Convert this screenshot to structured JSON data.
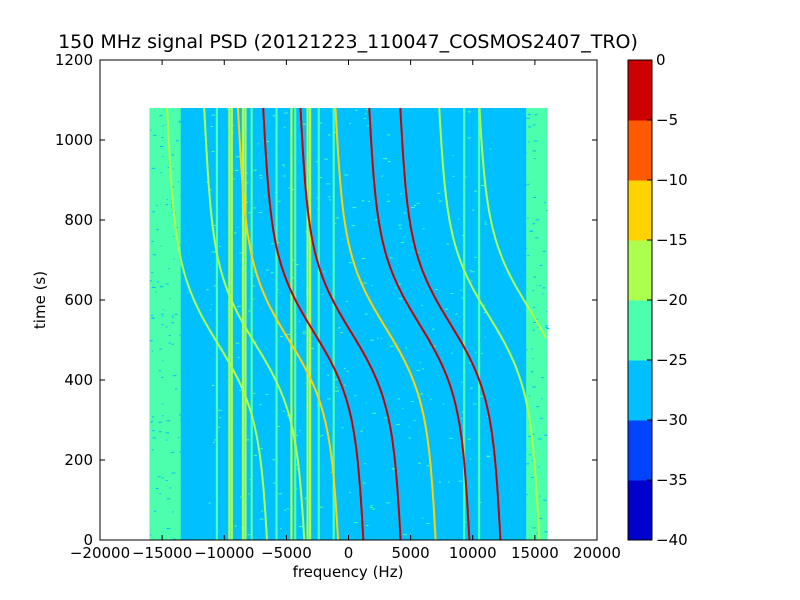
{
  "chart_data": {
    "type": "heatmap",
    "title": "150 MHz signal PSD (20121223_110047_COSMOS2407_TRO)",
    "xlabel": "frequency (Hz)",
    "ylabel": "time (s)",
    "xlim": [
      -20000,
      20000
    ],
    "ylim": [
      0,
      1200
    ],
    "xticks": [
      -20000,
      -15000,
      -10000,
      -5000,
      0,
      5000,
      10000,
      15000,
      20000
    ],
    "xtick_labels": [
      "−20000",
      "−15000",
      "−10000",
      "−5000",
      "0",
      "5000",
      "10000",
      "15000",
      "20000"
    ],
    "yticks": [
      0,
      200,
      400,
      600,
      800,
      1000,
      1200
    ],
    "ytick_labels": [
      "0",
      "200",
      "400",
      "600",
      "800",
      "1000",
      "1200"
    ],
    "data_extent": {
      "x": [
        -16000,
        16000
      ],
      "y": [
        0,
        1080
      ]
    },
    "background_level_dB": -27,
    "edge_level_dB": -22,
    "colorbar": {
      "levels": [
        -40,
        -35,
        -30,
        -25,
        -20,
        -15,
        -10,
        -5,
        0
      ],
      "tick_labels": [
        "−40",
        "−35",
        "−30",
        "−25",
        "−20",
        "−15",
        "−10",
        "−5",
        "0"
      ],
      "colors": [
        "#0000cc",
        "#0044ff",
        "#00c0ff",
        "#4cffac",
        "#acff4c",
        "#ffd200",
        "#ff5a00",
        "#cc0000"
      ]
    },
    "vertical_lines": [
      {
        "x": -14800,
        "level": -22
      },
      {
        "x": -10600,
        "level": -22
      },
      {
        "x": -9600,
        "level": -18
      },
      {
        "x": -9400,
        "level": -20
      },
      {
        "x": -8500,
        "level": -16
      },
      {
        "x": -8300,
        "level": -18
      },
      {
        "x": -7800,
        "level": -22
      },
      {
        "x": -5800,
        "level": -22
      },
      {
        "x": -4600,
        "level": -18
      },
      {
        "x": -4300,
        "level": -22
      },
      {
        "x": -3300,
        "level": -16
      },
      {
        "x": -3100,
        "level": -20
      },
      {
        "x": -2400,
        "level": -22
      },
      {
        "x": -1200,
        "level": -22
      },
      {
        "x": 9300,
        "level": -22
      },
      {
        "x": 10500,
        "level": -22
      }
    ],
    "sweep_tracks": [
      {
        "x_center": -10500,
        "y_center": 490,
        "level": -20
      },
      {
        "x_center": -7500,
        "y_center": 490,
        "level": -18
      },
      {
        "x_center": -4800,
        "y_center": 500,
        "level": -15
      },
      {
        "x_center": -2800,
        "y_center": 520,
        "level": -5
      },
      {
        "x_center": 200,
        "y_center": 520,
        "level": -5
      },
      {
        "x_center": 3000,
        "y_center": 530,
        "level": -12
      },
      {
        "x_center": 5700,
        "y_center": 540,
        "level": -5
      },
      {
        "x_center": 8200,
        "y_center": 540,
        "level": -5
      },
      {
        "x_center": 11300,
        "y_center": 560,
        "level": -18
      },
      {
        "x_center": 14500,
        "y_center": 580,
        "level": -20
      }
    ]
  }
}
